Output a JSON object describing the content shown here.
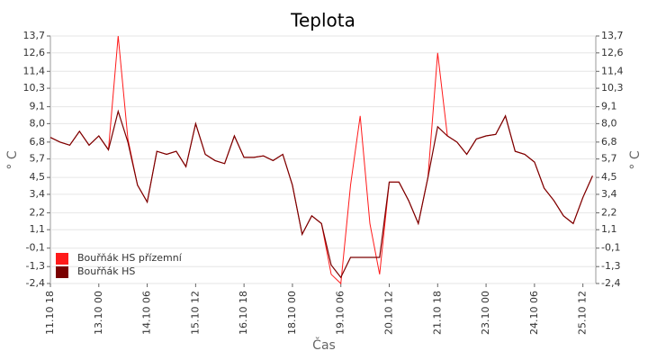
{
  "chart_data": {
    "type": "line",
    "title": "Teplota",
    "x_label": "Čas",
    "y_label": "° C",
    "x": [
      "11.10 18",
      "12.10 00",
      "12.10 06",
      "12.10 12",
      "12.10 18",
      "13.10 00",
      "13.10 06",
      "13.10 12",
      "13.10 18",
      "14.10 00",
      "14.10 06",
      "14.10 12",
      "14.10 18",
      "15.10 00",
      "15.10 06",
      "15.10 12",
      "15.10 18",
      "16.10 00",
      "16.10 06",
      "16.10 12",
      "16.10 18",
      "17.10 00",
      "17.10 06",
      "17.10 12",
      "17.10 18",
      "18.10 00",
      "18.10 06",
      "18.10 12",
      "18.10 18",
      "19.10 00",
      "19.10 06",
      "19.10 12",
      "19.10 18",
      "20.10 00",
      "20.10 06",
      "20.10 12",
      "20.10 18",
      "21.10 00",
      "21.10 06",
      "21.10 12",
      "21.10 18",
      "22.10 00",
      "22.10 06",
      "22.10 12",
      "22.10 18",
      "23.10 00",
      "23.10 06",
      "23.10 12",
      "23.10 18",
      "24.10 00",
      "24.10 06",
      "24.10 12",
      "24.10 18",
      "25.10 00",
      "25.10 06",
      "25.10 12",
      "25.10 18"
    ],
    "series": [
      {
        "name": "Bouřňák HS přízemní",
        "color": "#ff1a1a",
        "values": [
          7.1,
          6.8,
          6.6,
          7.5,
          6.6,
          7.2,
          6.3,
          13.7,
          7.0,
          4.0,
          2.9,
          6.2,
          6.0,
          6.2,
          5.2,
          8.0,
          6.0,
          5.6,
          5.4,
          7.2,
          5.8,
          5.8,
          5.9,
          5.6,
          6.0,
          4.0,
          0.8,
          2.0,
          1.5,
          -1.8,
          -2.4,
          4.0,
          8.5,
          1.5,
          -1.8,
          4.2,
          4.2,
          3.0,
          1.5,
          4.5,
          12.6,
          7.2,
          6.8,
          6.0,
          7.0,
          7.2,
          7.3,
          8.5,
          6.2,
          6.0,
          5.5,
          3.8,
          3.0,
          2.0,
          1.5,
          3.2,
          4.6
        ]
      },
      {
        "name": "Bouřňák HS",
        "color": "#7a0000",
        "values": [
          7.1,
          6.8,
          6.6,
          7.5,
          6.6,
          7.2,
          6.3,
          8.8,
          6.8,
          4.0,
          2.9,
          6.2,
          6.0,
          6.2,
          5.2,
          8.0,
          6.0,
          5.6,
          5.4,
          7.2,
          5.8,
          5.8,
          5.9,
          5.6,
          6.0,
          4.0,
          0.8,
          2.0,
          1.5,
          -1.2,
          -2.0,
          -0.7,
          -0.7,
          -0.7,
          -0.7,
          4.2,
          4.2,
          3.0,
          1.5,
          4.5,
          7.8,
          7.2,
          6.8,
          6.0,
          7.0,
          7.2,
          7.3,
          8.5,
          6.2,
          6.0,
          5.5,
          3.8,
          3.0,
          2.0,
          1.5,
          3.2,
          4.6
        ]
      }
    ],
    "xlim": [
      "11.10 18",
      "25.10 20"
    ],
    "xticks": [
      "11.10 18",
      "13.10 00",
      "14.10 06",
      "15.10 12",
      "16.10 18",
      "18.10 00",
      "19.10 06",
      "20.10 12",
      "21.10 18",
      "23.10 00",
      "24.10 06",
      "25.10 12"
    ],
    "ylim": [
      -2.4,
      13.7
    ],
    "yticks": [
      {
        "value": 13.7,
        "label": "13,7"
      },
      {
        "value": 12.6,
        "label": "12,6"
      },
      {
        "value": 11.4,
        "label": "11,4"
      },
      {
        "value": 10.3,
        "label": "10,3"
      },
      {
        "value": 9.1,
        "label": "9,1"
      },
      {
        "value": 8.0,
        "label": "8,0"
      },
      {
        "value": 6.8,
        "label": "6,8"
      },
      {
        "value": 5.7,
        "label": "5,7"
      },
      {
        "value": 4.5,
        "label": "4,5"
      },
      {
        "value": 3.4,
        "label": "3,4"
      },
      {
        "value": 2.2,
        "label": "2,2"
      },
      {
        "value": 1.1,
        "label": "1,1"
      },
      {
        "value": -0.1,
        "label": "-0,1"
      },
      {
        "value": -1.3,
        "label": "-1,3"
      },
      {
        "value": -2.4,
        "label": "-2,4"
      }
    ],
    "grid": true,
    "legend": "lower left"
  }
}
